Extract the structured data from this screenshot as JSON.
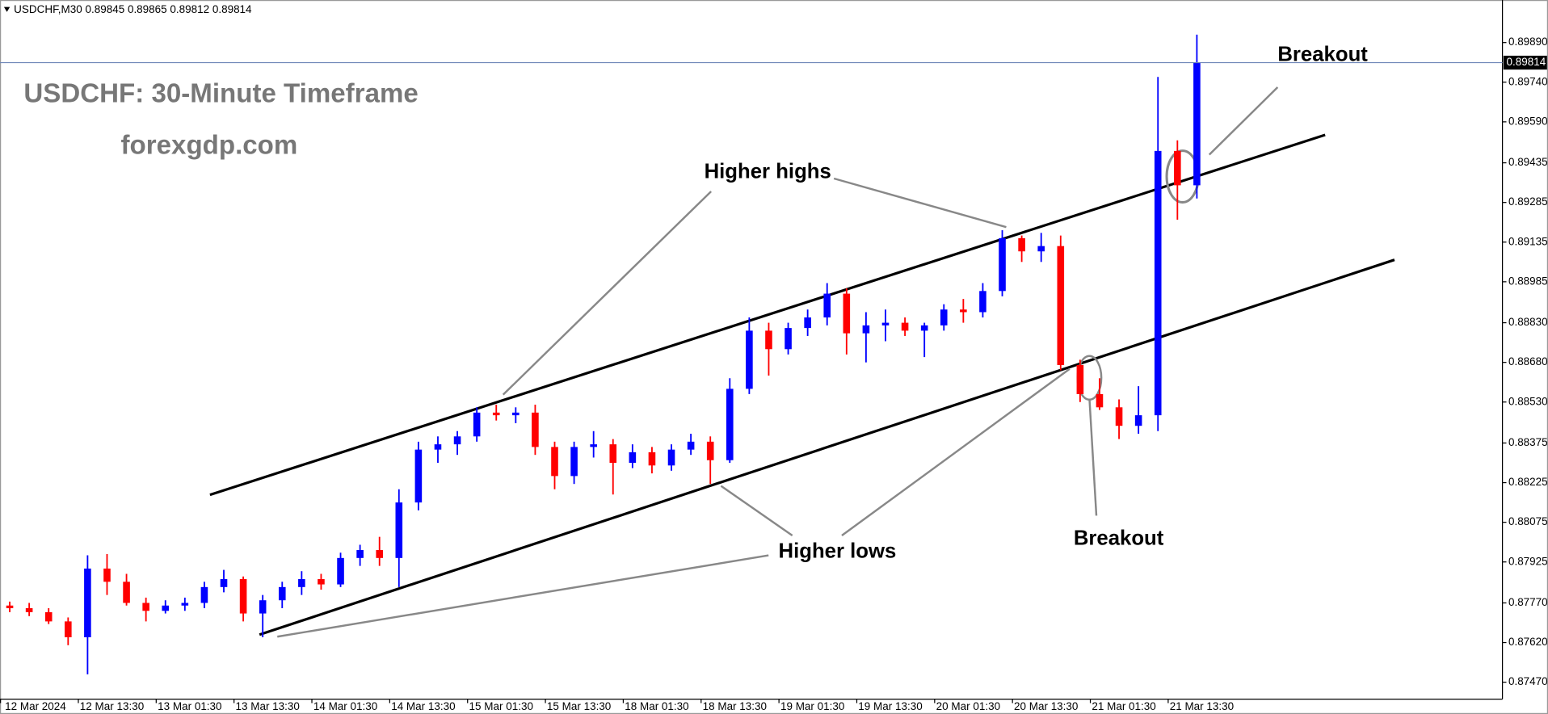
{
  "chart_data": {
    "type": "candlestick",
    "header": "USDCHF,M30  0.89845 0.89865 0.89812 0.89814",
    "title": "USDCHF: 30-Minute Timeframe",
    "subtitle": "forexgdp.com",
    "categories": [
      "12 Mar 2024",
      null,
      null,
      null,
      "12 Mar 13:30",
      null,
      null,
      null,
      "13 Mar 01:30",
      null,
      null,
      null,
      "13 Mar 13:30",
      null,
      null,
      null,
      "14 Mar 01:30",
      null,
      null,
      null,
      "14 Mar 13:30",
      null,
      null,
      null,
      "15 Mar 01:30",
      null,
      null,
      null,
      "15 Mar 13:30",
      null,
      null,
      null,
      "18 Mar 01:30",
      null,
      null,
      null,
      "18 Mar 13:30",
      null,
      null,
      null,
      "19 Mar 01:30",
      null,
      null,
      null,
      "19 Mar 13:30",
      null,
      null,
      null,
      "20 Mar 01:30",
      null,
      null,
      null,
      "20 Mar 13:30",
      null,
      null,
      null,
      "21 Mar 01:30",
      null,
      null,
      null,
      "21 Mar 13:30",
      null
    ],
    "open": [
      0.8776,
      0.8775,
      0.87735,
      0.877,
      0.8764,
      0.879,
      0.8785,
      0.8777,
      0.8774,
      0.8776,
      0.8777,
      0.8783,
      0.8786,
      0.8773,
      0.8778,
      0.8783,
      0.8786,
      0.8784,
      0.8794,
      0.8797,
      0.8794,
      0.8815,
      0.8835,
      0.8837,
      0.884,
      0.8849,
      0.8848,
      0.8849,
      0.8836,
      0.8825,
      0.8836,
      0.8837,
      0.883,
      0.8834,
      0.8829,
      0.8835,
      0.8838,
      0.8831,
      0.8858,
      0.888,
      0.8873,
      0.8881,
      0.8885,
      0.8894,
      0.8879,
      0.8882,
      0.8883,
      0.888,
      0.8882,
      0.8888,
      0.8887,
      0.8895,
      0.8915,
      0.891,
      0.8912,
      0.8867,
      0.8856,
      0.8851,
      0.8844,
      0.8848,
      0.8948,
      0.8935
    ],
    "high": [
      0.87775,
      0.8777,
      0.8775,
      0.87715,
      0.8795,
      0.87955,
      0.8788,
      0.8779,
      0.8778,
      0.8779,
      0.8785,
      0.87895,
      0.8787,
      0.878,
      0.8785,
      0.8789,
      0.8788,
      0.8796,
      0.8799,
      0.8802,
      0.882,
      0.8838,
      0.884,
      0.8842,
      0.8851,
      0.8852,
      0.8851,
      0.8852,
      0.8838,
      0.8838,
      0.8842,
      0.8839,
      0.8837,
      0.8836,
      0.8837,
      0.8841,
      0.884,
      0.8862,
      0.8885,
      0.8883,
      0.8883,
      0.8888,
      0.8898,
      0.8896,
      0.8887,
      0.8888,
      0.8885,
      0.8883,
      0.889,
      0.8892,
      0.8898,
      0.8918,
      0.8916,
      0.8917,
      0.8916,
      0.8869,
      0.8862,
      0.8854,
      0.8859,
      0.8976,
      0.8952,
      0.8992
    ],
    "low": [
      0.87735,
      0.8772,
      0.8769,
      0.8761,
      0.875,
      0.878,
      0.8776,
      0.877,
      0.8773,
      0.8774,
      0.8775,
      0.8781,
      0.877,
      0.8764,
      0.8775,
      0.878,
      0.8782,
      0.8783,
      0.8791,
      0.8791,
      0.8783,
      0.8812,
      0.883,
      0.8833,
      0.8838,
      0.8846,
      0.8845,
      0.8833,
      0.882,
      0.8822,
      0.8832,
      0.8818,
      0.8828,
      0.8826,
      0.8827,
      0.8833,
      0.8822,
      0.883,
      0.8856,
      0.8863,
      0.8871,
      0.8878,
      0.8882,
      0.8871,
      0.8868,
      0.8876,
      0.8878,
      0.887,
      0.888,
      0.8883,
      0.8885,
      0.8893,
      0.8906,
      0.8906,
      0.8865,
      0.8853,
      0.885,
      0.8839,
      0.8841,
      0.8842,
      0.8922,
      0.893
    ],
    "close": [
      0.8775,
      0.87735,
      0.877,
      0.8764,
      0.879,
      0.8785,
      0.8777,
      0.8774,
      0.8776,
      0.8777,
      0.8783,
      0.8786,
      0.8773,
      0.8778,
      0.8783,
      0.8786,
      0.8784,
      0.8794,
      0.8797,
      0.8794,
      0.8815,
      0.8835,
      0.8837,
      0.884,
      0.8849,
      0.8848,
      0.8849,
      0.8836,
      0.8825,
      0.8836,
      0.8837,
      0.883,
      0.8834,
      0.8829,
      0.8835,
      0.8838,
      0.8831,
      0.8858,
      0.888,
      0.8873,
      0.8881,
      0.8885,
      0.8894,
      0.8879,
      0.8882,
      0.8883,
      0.888,
      0.8882,
      0.8888,
      0.8887,
      0.8895,
      0.8915,
      0.891,
      0.8912,
      0.8867,
      0.8856,
      0.8851,
      0.8844,
      0.8848,
      0.8948,
      0.8935,
      0.89814
    ],
    "up_color": "#0000ff",
    "down_color": "#ff0000",
    "ylim": [
      0.87406,
      0.90051
    ],
    "yticks": [
      {
        "value": 0.8747,
        "label": "0.87470"
      },
      {
        "value": 0.8762,
        "label": "0.87620"
      },
      {
        "value": 0.8777,
        "label": "0.87770"
      },
      {
        "value": 0.87925,
        "label": "0.87925"
      },
      {
        "value": 0.88075,
        "label": "0.88075"
      },
      {
        "value": 0.88225,
        "label": "0.88225"
      },
      {
        "value": 0.88375,
        "label": "0.88375"
      },
      {
        "value": 0.8853,
        "label": "0.88530"
      },
      {
        "value": 0.8868,
        "label": "0.88680"
      },
      {
        "value": 0.8883,
        "label": "0.88830"
      },
      {
        "value": 0.88985,
        "label": "0.88985"
      },
      {
        "value": 0.89135,
        "label": "0.89135"
      },
      {
        "value": 0.89285,
        "label": "0.89285"
      },
      {
        "value": 0.89435,
        "label": "0.89435"
      },
      {
        "value": 0.8959,
        "label": "0.89590"
      },
      {
        "value": 0.8974,
        "label": "0.89740"
      },
      {
        "value": 0.8989,
        "label": "0.89890"
      }
    ],
    "last_price": 0.89814,
    "annotations": [
      "Higher highs",
      "Higher lows",
      "Breakout",
      "Breakout"
    ]
  }
}
